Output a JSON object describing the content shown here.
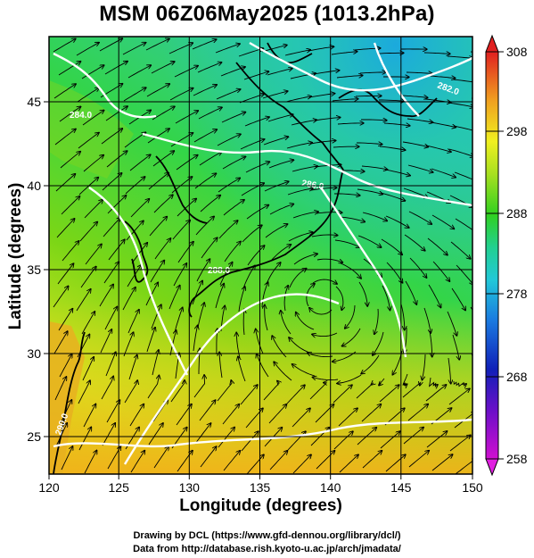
{
  "title": "MSM 06Z06May2025 (1013.2hPa)",
  "axes": {
    "xlabel": "Longitude (degrees)",
    "ylabel": "Latitude  (degrees)",
    "xticks": [
      "120",
      "125",
      "130",
      "135",
      "140",
      "145",
      "150"
    ],
    "yticks": [
      "25",
      "30",
      "35",
      "40",
      "45"
    ],
    "xlim": [
      120,
      150
    ],
    "ylim": [
      22.4,
      47.6
    ]
  },
  "colorbar": {
    "labels": [
      "308",
      "298",
      "288",
      "278",
      "268",
      "258"
    ],
    "range": [
      258,
      308
    ]
  },
  "contour_labels": [
    "290.0",
    "288.0",
    "286.0",
    "284.0",
    "282.0"
  ],
  "credits": {
    "line1": "Drawing by DCL (https://www.gfd-dennou.org/library/dcl/)",
    "line2": "Data from http://database.rish.kyoto-u.ac.jp/arch/jmadata/"
  }
}
